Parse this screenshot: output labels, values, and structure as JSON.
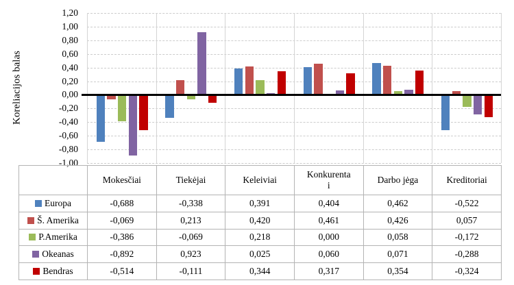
{
  "chart_data": {
    "type": "bar",
    "title": "",
    "xlabel": "",
    "ylabel": "Koreliacijos balas",
    "ylim": [
      -1.0,
      1.2
    ],
    "ytick_step": 0.2,
    "grid": true,
    "legend_position": "left-of-data-table",
    "categories": [
      "Mokesčiai",
      "Tiekėjai",
      "Keleiviai",
      "Konkurentai",
      "Darbo jėga",
      "Kreditoriai"
    ],
    "series": [
      {
        "name": "Europa",
        "color": "#4F81BD",
        "values": [
          -0.688,
          -0.338,
          0.391,
          0.404,
          0.462,
          -0.522
        ]
      },
      {
        "name": "Š. Amerika",
        "color": "#C0504D",
        "values": [
          -0.069,
          0.213,
          0.42,
          0.461,
          0.426,
          0.057
        ]
      },
      {
        "name": "P.Amerika",
        "color": "#9BBB59",
        "values": [
          -0.386,
          -0.069,
          0.218,
          0.0,
          0.058,
          -0.172
        ]
      },
      {
        "name": "Okeanas",
        "color": "#8064A2",
        "values": [
          -0.892,
          0.923,
          0.025,
          0.06,
          0.071,
          -0.288
        ]
      },
      {
        "name": "Bendras",
        "color": "#C00000",
        "values": [
          -0.514,
          -0.111,
          0.344,
          0.317,
          0.354,
          -0.324
        ]
      }
    ]
  },
  "axis": {
    "y_title": "Koreliacijos balas",
    "y_ticks": [
      "1,20",
      "1,00",
      "0,80",
      "0,60",
      "0,40",
      "0,20",
      "0,00",
      "-0,20",
      "-0,40",
      "-0,60",
      "-0,80",
      "-1,00"
    ]
  },
  "table": {
    "headers": [
      "Mokesčiai",
      "Tiekėjai",
      "Keleiviai",
      "Konkurenta\ni",
      "Darbo jėga",
      "Kreditoriai"
    ],
    "rows": [
      {
        "label": "Europa",
        "swatch": "#4F81BD",
        "values": [
          "-0,688",
          "-0,338",
          "0,391",
          "0,404",
          "0,462",
          "-0,522"
        ]
      },
      {
        "label": "Š. Amerika",
        "swatch": "#C0504D",
        "values": [
          "-0,069",
          "0,213",
          "0,420",
          "0,461",
          "0,426",
          "0,057"
        ]
      },
      {
        "label": "P.Amerika",
        "swatch": "#9BBB59",
        "values": [
          "-0,386",
          "-0,069",
          "0,218",
          "0,000",
          "0,058",
          "-0,172"
        ]
      },
      {
        "label": "Okeanas",
        "swatch": "#8064A2",
        "values": [
          "-0,892",
          "0,923",
          "0,025",
          "0,060",
          "0,071",
          "-0,288"
        ]
      },
      {
        "label": "Bendras",
        "swatch": "#C00000",
        "values": [
          "-0,514",
          "-0,111",
          "0,344",
          "0,317",
          "0,354",
          "-0,324"
        ]
      }
    ]
  }
}
